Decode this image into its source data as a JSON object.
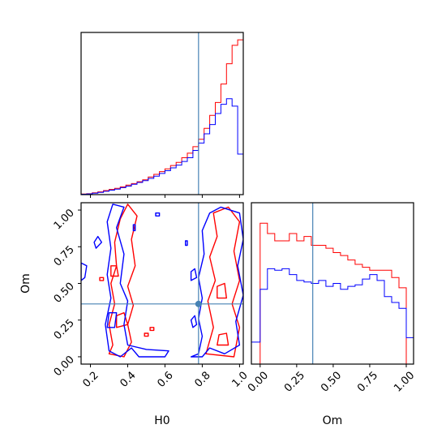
{
  "colors": {
    "series_a": "#ff0000",
    "series_b": "#0000ff",
    "truth": "#4682b4",
    "frame": "#000000"
  },
  "chart_data": [
    {
      "type": "histogram",
      "panel": "top-left",
      "variable": "H0",
      "xlabel": "",
      "ylabel": "",
      "xlim": [
        0.15,
        1.02
      ],
      "truth_x": 0.78,
      "bin_edges": [
        0.15,
        0.18,
        0.21,
        0.24,
        0.27,
        0.3,
        0.33,
        0.36,
        0.39,
        0.42,
        0.45,
        0.48,
        0.51,
        0.54,
        0.57,
        0.6,
        0.63,
        0.66,
        0.69,
        0.72,
        0.75,
        0.78,
        0.81,
        0.84,
        0.87,
        0.9,
        0.93,
        0.96,
        0.99,
        1.02
      ],
      "series": [
        {
          "color": "red",
          "counts": [
            0.3,
            0.5,
            1.0,
            1.5,
            2.2,
            2.8,
            3.4,
            4.2,
            5.2,
            6.0,
            7.0,
            8.0,
            9.6,
            11.0,
            12.5,
            14.0,
            15.8,
            17.5,
            20.0,
            22.5,
            26.0,
            30.0,
            36.0,
            43.0,
            50.0,
            60.0,
            71.0,
            81.0,
            84.0
          ]
        },
        {
          "color": "blue",
          "counts": [
            0.2,
            0.4,
            0.8,
            1.2,
            1.8,
            2.4,
            3.0,
            3.8,
            4.6,
            5.6,
            6.6,
            7.6,
            8.8,
            10.0,
            11.5,
            13.0,
            14.5,
            16.0,
            18.0,
            20.0,
            24.0,
            28.0,
            33.0,
            38.0,
            44.0,
            49.0,
            52.0,
            48.0,
            22.0
          ]
        }
      ],
      "ylim": [
        0,
        88
      ]
    },
    {
      "type": "contour",
      "panel": "bottom-left",
      "xlabel": "H0",
      "ylabel": "Om",
      "xlim": [
        0.15,
        1.02
      ],
      "ylim": [
        -0.05,
        1.05
      ],
      "xticks": [
        "0.2",
        "0.4",
        "0.6",
        "0.8",
        "1.0"
      ],
      "yticks": [
        "0.00",
        "0.25",
        "0.50",
        "0.75",
        "1.00"
      ],
      "truth_point": [
        0.78,
        0.36
      ],
      "series": [
        {
          "color": "red",
          "contours": [
            [
              [
                0.3,
                0.02
              ],
              [
                0.38,
                0.0
              ],
              [
                0.42,
                0.1
              ],
              [
                0.4,
                0.22
              ],
              [
                0.43,
                0.35
              ],
              [
                0.4,
                0.48
              ],
              [
                0.44,
                0.62
              ],
              [
                0.42,
                0.8
              ],
              [
                0.45,
                0.96
              ],
              [
                0.4,
                1.04
              ],
              [
                0.36,
                0.94
              ],
              [
                0.33,
                0.78
              ],
              [
                0.34,
                0.62
              ],
              [
                0.31,
                0.5
              ],
              [
                0.33,
                0.36
              ],
              [
                0.3,
                0.22
              ],
              [
                0.32,
                0.08
              ]
            ],
            [
              [
                0.34,
                0.2
              ],
              [
                0.4,
                0.22
              ],
              [
                0.38,
                0.3
              ],
              [
                0.34,
                0.28
              ]
            ],
            [
              [
                0.31,
                0.55
              ],
              [
                0.35,
                0.55
              ],
              [
                0.34,
                0.62
              ],
              [
                0.31,
                0.62
              ]
            ],
            [
              [
                0.82,
                0.02
              ],
              [
                0.97,
                0.0
              ],
              [
                1.0,
                0.2
              ],
              [
                0.96,
                0.36
              ],
              [
                1.0,
                0.52
              ],
              [
                0.97,
                0.72
              ],
              [
                1.0,
                0.92
              ],
              [
                0.94,
                1.02
              ],
              [
                0.86,
                0.98
              ],
              [
                0.88,
                0.82
              ],
              [
                0.84,
                0.68
              ],
              [
                0.87,
                0.52
              ],
              [
                0.83,
                0.38
              ],
              [
                0.86,
                0.2
              ]
            ],
            [
              [
                0.88,
                0.4
              ],
              [
                0.93,
                0.4
              ],
              [
                0.92,
                0.5
              ],
              [
                0.88,
                0.48
              ]
            ],
            [
              [
                0.88,
                0.08
              ],
              [
                0.94,
                0.08
              ],
              [
                0.93,
                0.16
              ],
              [
                0.89,
                0.15
              ]
            ],
            [
              [
                0.25,
                0.52
              ],
              [
                0.27,
                0.52
              ],
              [
                0.27,
                0.54
              ],
              [
                0.25,
                0.54
              ]
            ],
            [
              [
                0.49,
                0.14
              ],
              [
                0.51,
                0.14
              ],
              [
                0.51,
                0.16
              ],
              [
                0.49,
                0.16
              ]
            ],
            [
              [
                0.52,
                0.18
              ],
              [
                0.54,
                0.18
              ],
              [
                0.54,
                0.2
              ],
              [
                0.52,
                0.2
              ]
            ]
          ]
        },
        {
          "color": "blue",
          "contours": [
            [
              [
                0.3,
                0.04
              ],
              [
                0.36,
                0.0
              ],
              [
                0.42,
                0.06
              ],
              [
                0.46,
                0.0
              ],
              [
                0.6,
                0.0
              ],
              [
                0.62,
                0.04
              ],
              [
                0.5,
                0.05
              ],
              [
                0.4,
                0.08
              ],
              [
                0.38,
                0.22
              ],
              [
                0.4,
                0.38
              ],
              [
                0.36,
                0.5
              ],
              [
                0.38,
                0.7
              ],
              [
                0.34,
                0.88
              ],
              [
                0.38,
                1.02
              ],
              [
                0.32,
                1.04
              ],
              [
                0.29,
                0.92
              ],
              [
                0.31,
                0.74
              ],
              [
                0.29,
                0.56
              ],
              [
                0.31,
                0.4
              ],
              [
                0.28,
                0.22
              ]
            ],
            [
              [
                0.29,
                0.2
              ],
              [
                0.33,
                0.2
              ],
              [
                0.34,
                0.3
              ],
              [
                0.3,
                0.3
              ]
            ],
            [
              [
                0.15,
                0.52
              ],
              [
                0.17,
                0.54
              ],
              [
                0.18,
                0.62
              ],
              [
                0.15,
                0.64
              ]
            ],
            [
              [
                0.23,
                0.74
              ],
              [
                0.26,
                0.78
              ],
              [
                0.24,
                0.82
              ],
              [
                0.22,
                0.78
              ]
            ],
            [
              [
                0.74,
                0.0
              ],
              [
                0.78,
                0.02
              ],
              [
                0.8,
                0.14
              ],
              [
                0.78,
                0.26
              ],
              [
                0.8,
                0.4
              ],
              [
                0.78,
                0.54
              ],
              [
                0.81,
                0.7
              ],
              [
                0.8,
                0.86
              ],
              [
                0.84,
                0.98
              ],
              [
                0.9,
                1.02
              ],
              [
                1.0,
                0.98
              ],
              [
                1.02,
                0.8
              ],
              [
                0.99,
                0.62
              ],
              [
                1.02,
                0.42
              ],
              [
                0.98,
                0.24
              ],
              [
                1.0,
                0.08
              ],
              [
                0.92,
                0.02
              ],
              [
                0.84,
                0.06
              ],
              [
                0.8,
                0.0
              ]
            ],
            [
              [
                0.75,
                0.2
              ],
              [
                0.77,
                0.22
              ],
              [
                0.76,
                0.28
              ],
              [
                0.74,
                0.25
              ]
            ],
            [
              [
                0.74,
                0.52
              ],
              [
                0.77,
                0.54
              ],
              [
                0.76,
                0.6
              ],
              [
                0.74,
                0.58
              ]
            ],
            [
              [
                0.55,
                0.96
              ],
              [
                0.57,
                0.96
              ],
              [
                0.57,
                0.98
              ],
              [
                0.55,
                0.98
              ]
            ],
            [
              [
                0.71,
                0.76
              ],
              [
                0.72,
                0.76
              ],
              [
                0.72,
                0.79
              ],
              [
                0.71,
                0.79
              ]
            ],
            [
              [
                0.43,
                0.86
              ],
              [
                0.44,
                0.86
              ],
              [
                0.44,
                0.9
              ],
              [
                0.43,
                0.9
              ]
            ]
          ]
        }
      ]
    },
    {
      "type": "histogram",
      "panel": "bottom-right",
      "variable": "Om",
      "xlabel": "Om",
      "ylabel": "",
      "xlim": [
        -0.06,
        1.05
      ],
      "xticks": [
        "0.00",
        "0.25",
        "0.50",
        "0.75",
        "1.00"
      ],
      "truth_x": 0.36,
      "bin_edges": [
        -0.06,
        0.0,
        0.05,
        0.1,
        0.15,
        0.2,
        0.25,
        0.3,
        0.35,
        0.4,
        0.45,
        0.5,
        0.55,
        0.6,
        0.65,
        0.7,
        0.75,
        0.8,
        0.85,
        0.9,
        0.95,
        1.0,
        1.05
      ],
      "series": [
        {
          "color": "red",
          "counts": [
            0,
            96,
            89,
            84,
            84,
            89,
            84,
            87,
            81,
            81,
            79,
            76,
            74,
            71,
            68,
            66,
            64,
            64,
            64,
            59,
            52,
            0
          ]
        },
        {
          "color": "blue",
          "counts": [
            15,
            51,
            65,
            64,
            65,
            61,
            57,
            56,
            55,
            57,
            53,
            55,
            51,
            53,
            54,
            58,
            61,
            57,
            46,
            42,
            38,
            18
          ]
        }
      ],
      "ylim": [
        0,
        110
      ]
    }
  ]
}
